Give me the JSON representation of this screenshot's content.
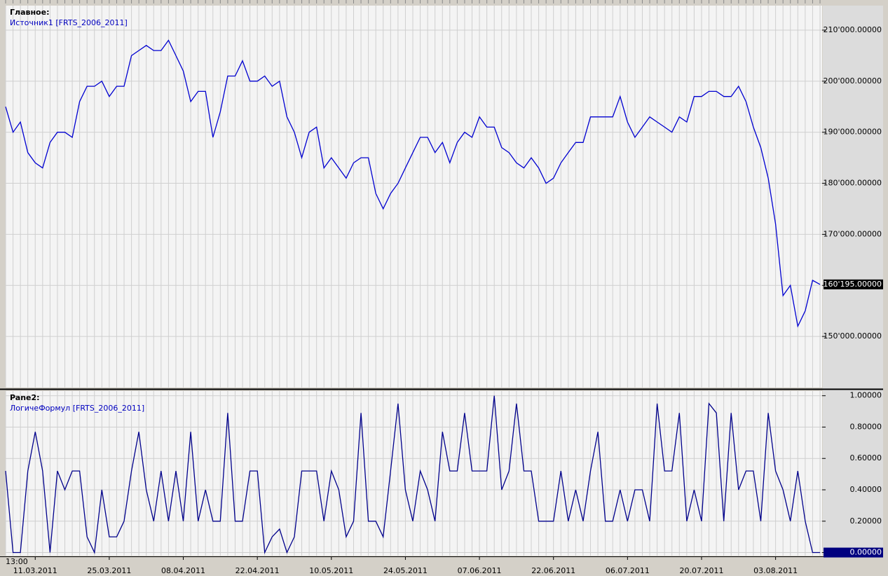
{
  "chart_data": [
    {
      "type": "line",
      "title": "Главное:",
      "subtitle": "Источник1 [FRTS_2006_2011]",
      "color": "#0000d0",
      "values": [
        195000,
        190000,
        192000,
        186000,
        184000,
        183000,
        188000,
        190000,
        190000,
        189000,
        196000,
        199000,
        199000,
        200000,
        197000,
        199000,
        199000,
        205000,
        206000,
        207000,
        206000,
        206000,
        208000,
        205000,
        202000,
        196000,
        198000,
        198000,
        189000,
        194000,
        201000,
        201000,
        204000,
        200000,
        200000,
        201000,
        199000,
        200000,
        193000,
        190000,
        185000,
        190000,
        191000,
        183000,
        185000,
        183000,
        181000,
        184000,
        185000,
        185000,
        178000,
        175000,
        178000,
        180000,
        183000,
        186000,
        189000,
        189000,
        186000,
        188000,
        184000,
        188000,
        190000,
        189000,
        193000,
        191000,
        191000,
        187000,
        186000,
        184000,
        183000,
        185000,
        183000,
        180000,
        181000,
        184000,
        186000,
        188000,
        188000,
        193000,
        193000,
        193000,
        193000,
        197000,
        192000,
        189000,
        191000,
        193000,
        192000,
        191000,
        190000,
        193000,
        192000,
        197000,
        197000,
        198000,
        198000,
        197000,
        197000,
        199000,
        196000,
        191000,
        187000,
        181000,
        172000,
        158000,
        160000,
        152000,
        155000,
        161000,
        160195
      ],
      "last_value_label": {
        "value": 160195,
        "label": "160'195.00000"
      },
      "ylim": [
        140000,
        214800
      ],
      "yticks": [
        {
          "value": 150000,
          "label": "150'000.00000"
        },
        {
          "value": 160000,
          "label": "160'000.00000"
        },
        {
          "value": 170000,
          "label": "170'000.00000"
        },
        {
          "value": 180000,
          "label": "180'000.00000"
        },
        {
          "value": 190000,
          "label": "190'000.00000"
        },
        {
          "value": 200000,
          "label": "200'000.00000"
        },
        {
          "value": 210000,
          "label": "210'000.00000"
        }
      ],
      "grid": true
    },
    {
      "type": "line",
      "title": "Pane2:",
      "subtitle": "ЛогичеФормул [FRTS_2006_2011]",
      "color": "#00008b",
      "categories": [
        null,
        null,
        null,
        null,
        "11.03.2011",
        null,
        null,
        null,
        null,
        null,
        null,
        null,
        null,
        null,
        "25.03.2011",
        null,
        null,
        null,
        null,
        null,
        null,
        null,
        null,
        null,
        "08.04.2011",
        null,
        null,
        null,
        null,
        null,
        null,
        null,
        null,
        null,
        "22.04.2011",
        null,
        null,
        null,
        null,
        null,
        null,
        null,
        null,
        null,
        "10.05.2011",
        null,
        null,
        null,
        null,
        null,
        null,
        null,
        null,
        null,
        "24.05.2011",
        null,
        null,
        null,
        null,
        null,
        null,
        null,
        null,
        null,
        "07.06.2011",
        null,
        null,
        null,
        null,
        null,
        null,
        null,
        null,
        null,
        "22.06.2011",
        null,
        null,
        null,
        null,
        null,
        null,
        null,
        null,
        null,
        "06.07.2011",
        null,
        null,
        null,
        null,
        null,
        null,
        null,
        null,
        null,
        "20.07.2011",
        null,
        null,
        null,
        null,
        null,
        null,
        null,
        null,
        null,
        "03.08.2011",
        null,
        null,
        null,
        null,
        null,
        null
      ],
      "time_label": "13:00",
      "values": [
        0.52,
        0,
        0,
        0.52,
        0.77,
        0.52,
        0,
        0.52,
        0.4,
        0.52,
        0.52,
        0.1,
        0,
        0.4,
        0.1,
        0.1,
        0.2,
        0.52,
        0.77,
        0.4,
        0.2,
        0.52,
        0.2,
        0.52,
        0.2,
        0.77,
        0.2,
        0.4,
        0.2,
        0.2,
        0.89,
        0.2,
        0.2,
        0.52,
        0.52,
        0,
        0.1,
        0.15,
        0,
        0.1,
        0.52,
        0.52,
        0.52,
        0.2,
        0.52,
        0.4,
        0.1,
        0.2,
        0.89,
        0.2,
        0.2,
        0.1,
        0.52,
        0.95,
        0.4,
        0.2,
        0.52,
        0.4,
        0.2,
        0.77,
        0.52,
        0.52,
        0.89,
        0.52,
        0.52,
        0.52,
        1.0,
        0.4,
        0.52,
        0.95,
        0.52,
        0.52,
        0.2,
        0.2,
        0.2,
        0.52,
        0.2,
        0.4,
        0.2,
        0.52,
        0.77,
        0.2,
        0.2,
        0.4,
        0.2,
        0.4,
        0.4,
        0.2,
        0.95,
        0.52,
        0.52,
        0.89,
        0.2,
        0.4,
        0.2,
        0.95,
        0.89,
        0.2,
        0.89,
        0.4,
        0.52,
        0.52,
        0.2,
        0.89,
        0.52,
        0.4,
        0.2,
        0.52,
        0.2,
        0,
        0
      ],
      "last_value_label": {
        "value": 0,
        "label": "0.00000"
      },
      "ylim": [
        -0.02,
        1.03
      ],
      "yticks": [
        {
          "value": 0,
          "label": "0.00000"
        },
        {
          "value": 0.2,
          "label": "0.20000"
        },
        {
          "value": 0.4,
          "label": "0.40000"
        },
        {
          "value": 0.6,
          "label": "0.60000"
        },
        {
          "value": 0.8,
          "label": "0.80000"
        },
        {
          "value": 1,
          "label": "1.00000"
        }
      ],
      "grid": true
    }
  ]
}
